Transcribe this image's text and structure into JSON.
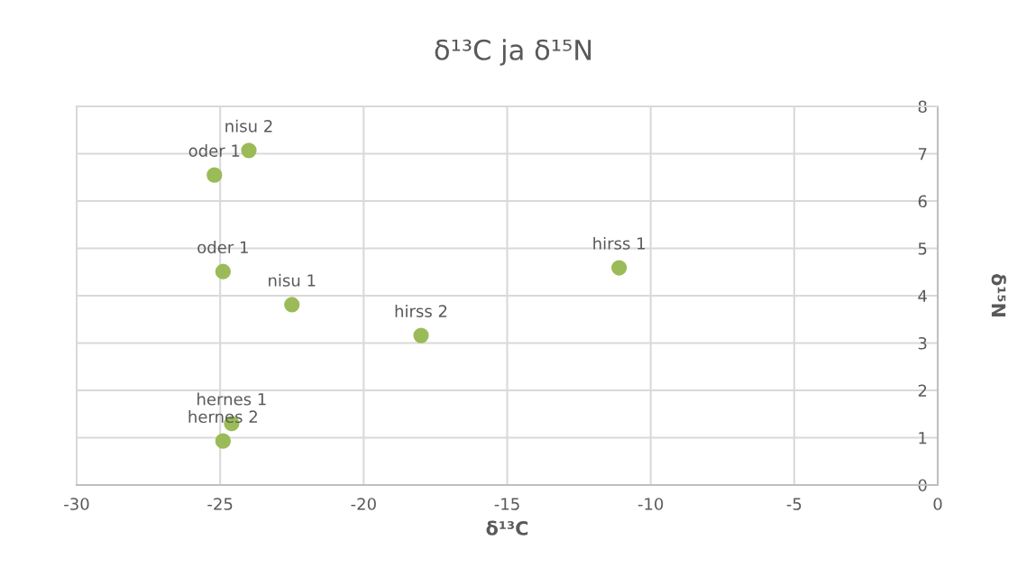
{
  "chart_data": {
    "type": "scatter",
    "title": "δ¹³C ja δ¹⁵N",
    "xlabel": "δ¹³C",
    "ylabel": "δ¹⁵N",
    "x": [
      -24.0,
      -25.2,
      -24.9,
      -22.5,
      -18.0,
      -11.1,
      -24.6,
      -24.9
    ],
    "series": [
      {
        "color": "#9bbb59",
        "values": [
          7.07,
          6.55,
          4.51,
          3.81,
          3.16,
          4.59,
          1.3,
          0.93
        ]
      }
    ],
    "annotations": [
      {
        "text": "nisu 2",
        "x": -24.0,
        "y": 7.07
      },
      {
        "text": "oder 1",
        "x": -25.2,
        "y": 6.55
      },
      {
        "text": "oder 1",
        "x": -24.9,
        "y": 4.51
      },
      {
        "text": "nisu 1",
        "x": -22.5,
        "y": 3.81
      },
      {
        "text": "hirss 2",
        "x": -18.0,
        "y": 3.16
      },
      {
        "text": "hirss 1",
        "x": -11.1,
        "y": 4.59
      },
      {
        "text": "hernes 1",
        "x": -24.6,
        "y": 1.3
      },
      {
        "text": "hernes 2",
        "x": -24.9,
        "y": 0.93
      }
    ],
    "xlim": [
      -30,
      0
    ],
    "xticks": [
      -30,
      -25,
      -20,
      -15,
      -10,
      -5,
      0
    ],
    "ylim": [
      0,
      8
    ],
    "yticks": [
      0,
      1,
      2,
      3,
      4,
      5,
      6,
      7,
      8
    ],
    "grid": true,
    "marker": "circle"
  }
}
